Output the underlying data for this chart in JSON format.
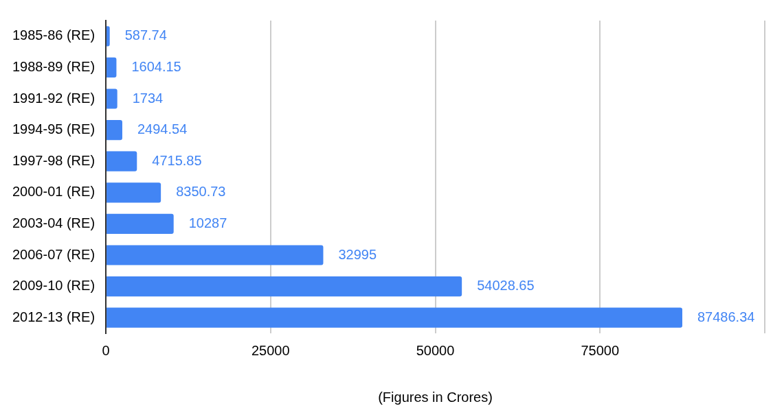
{
  "chart_data": {
    "type": "bar",
    "orientation": "horizontal",
    "xlabel": "(Figures in Crores)",
    "categories": [
      "1985-86 (RE)",
      "1988-89 (RE)",
      "1991-92 (RE)",
      "1994-95 (RE)",
      "1997-98 (RE)",
      "2000-01 (RE)",
      "2003-04 (RE)",
      "2006-07 (RE)",
      "2009-10 (RE)",
      "2012-13 (RE)"
    ],
    "values": [
      587.74,
      1604.15,
      1734,
      2494.54,
      4715.85,
      8350.73,
      10287,
      32995,
      54028.65,
      87486.34
    ],
    "color": "#4285f4",
    "xlim": [
      0,
      100000
    ],
    "xticks": [
      0,
      25000,
      50000,
      75000,
      {
        "value": 100000,
        "label": null
      }
    ],
    "grid": "x",
    "data_labels": true,
    "legend": false
  }
}
